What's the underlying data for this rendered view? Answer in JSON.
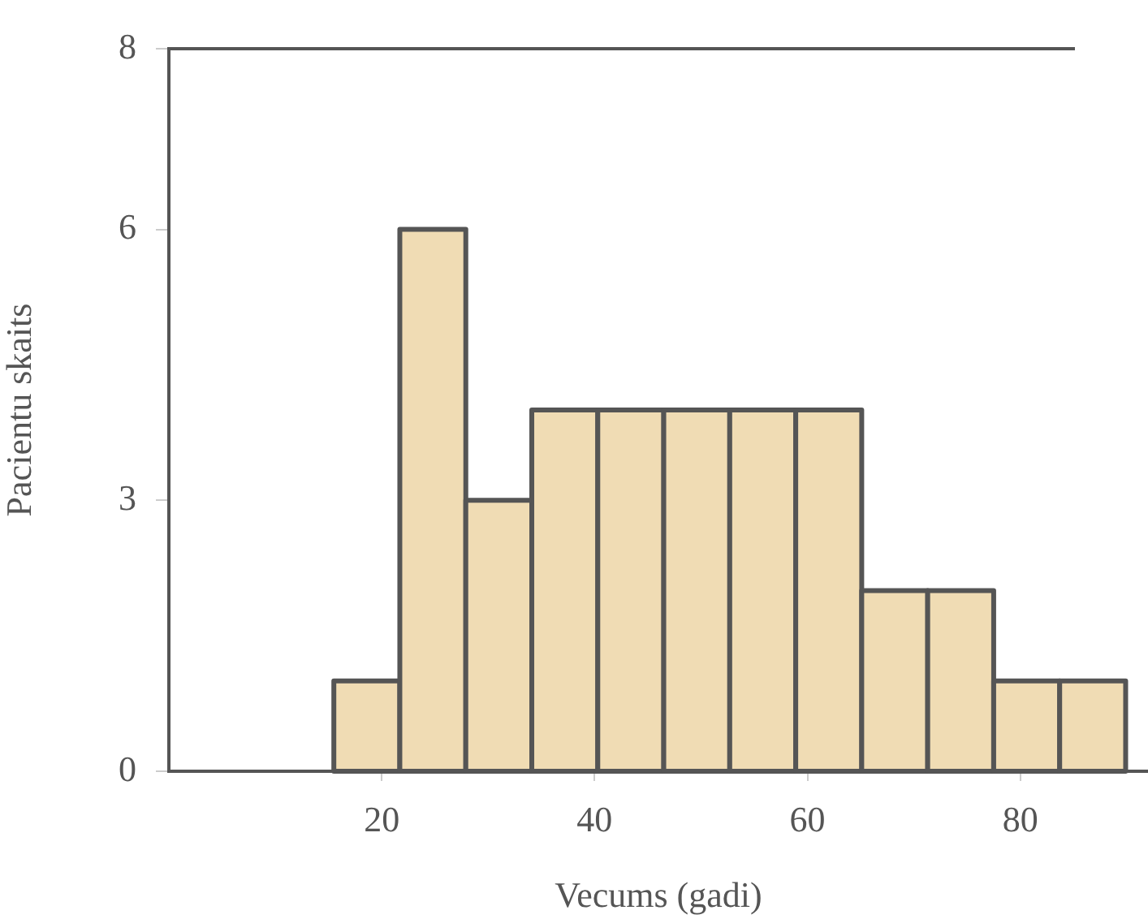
{
  "chart_data": {
    "type": "histogram",
    "xlabel": "Vecums (gadi)",
    "ylabel": "Pacientu skaits",
    "bins": [
      15.5,
      21.7,
      27.9,
      34.1,
      40.3,
      46.5,
      52.7,
      58.9,
      65.1,
      71.3,
      77.5,
      83.7,
      89.9
    ],
    "values": [
      1,
      6,
      3,
      4,
      4,
      4,
      4,
      4,
      2,
      2,
      1,
      1
    ],
    "color": "#f0dcb4",
    "xlim": [
      0,
      92
    ],
    "xticks": [
      20,
      40,
      60,
      80
    ],
    "ylim": [
      0,
      8
    ],
    "yticks": [
      0,
      3,
      6,
      8
    ],
    "grid": false,
    "legend": false
  }
}
